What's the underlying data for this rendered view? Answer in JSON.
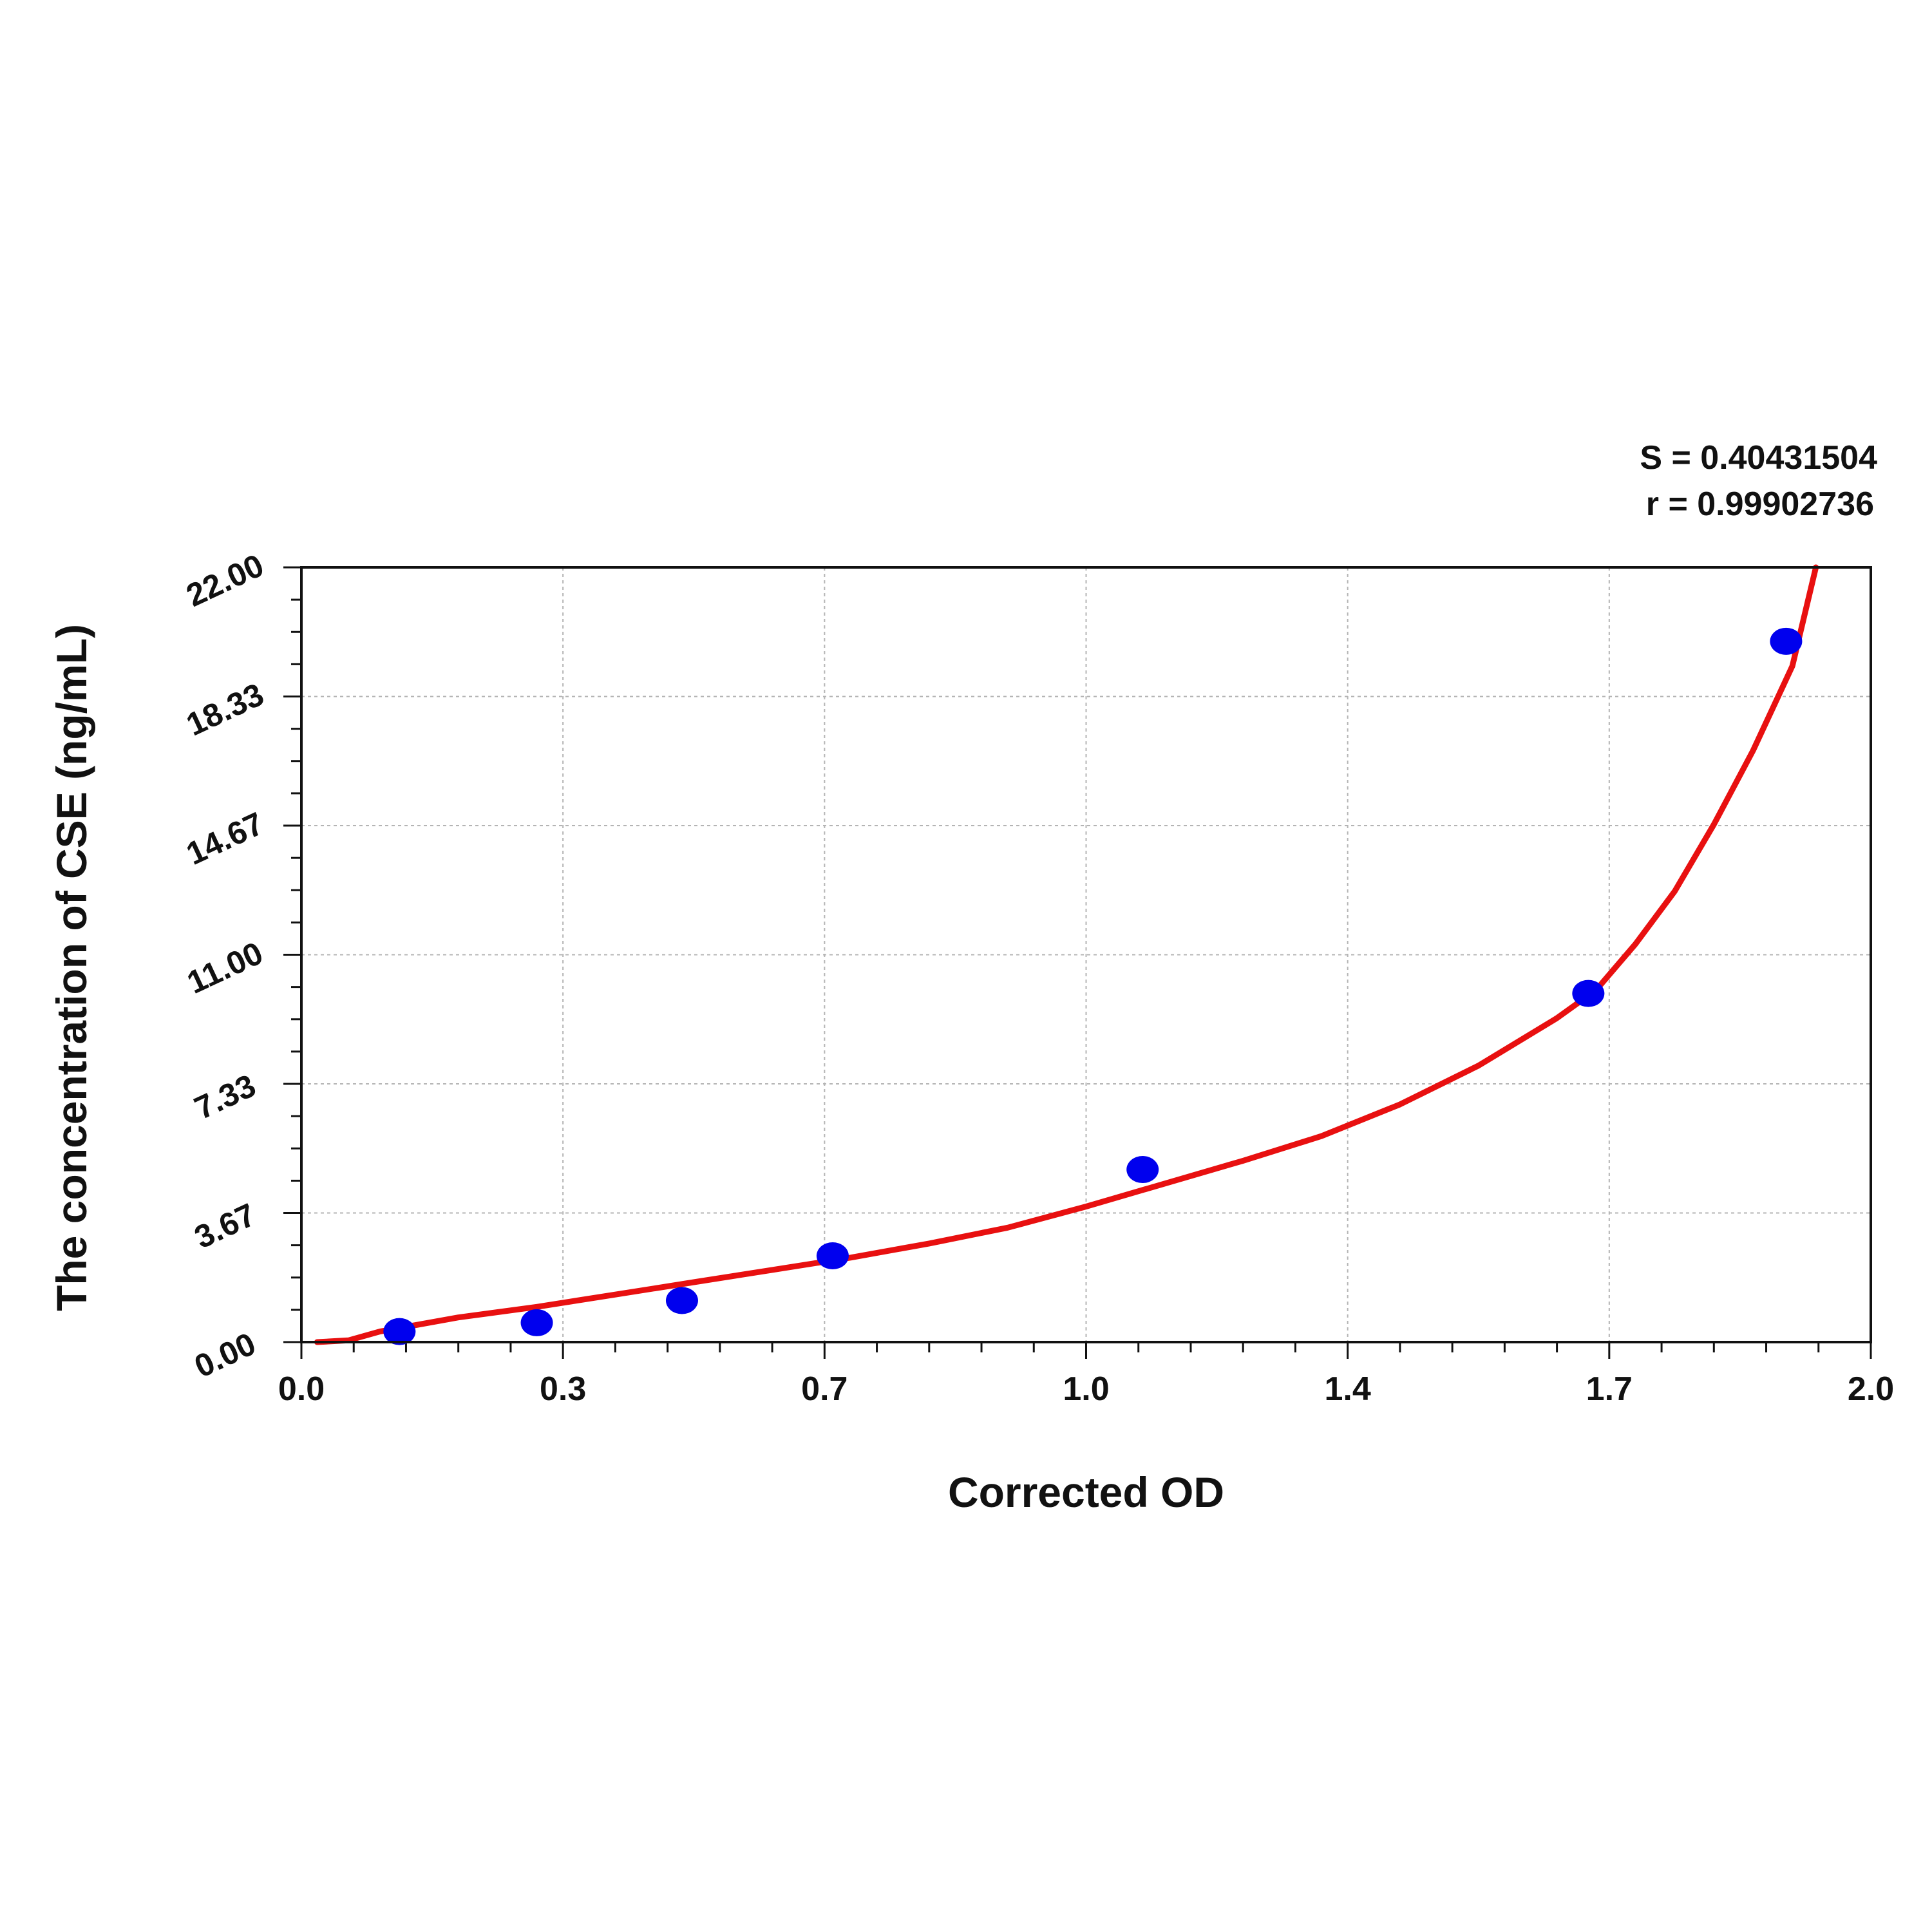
{
  "chart_data": {
    "type": "scatter",
    "title": "",
    "xlabel": "Corrected OD",
    "ylabel": "The concentration of CSE (ng/mL)",
    "xlim": [
      0,
      2.0
    ],
    "ylim": [
      0,
      22
    ],
    "x_ticks": [
      "0.0",
      "0.3",
      "0.7",
      "1.0",
      "1.4",
      "1.7",
      "2.0"
    ],
    "y_ticks": [
      "0.00",
      "3.67",
      "7.33",
      "11.00",
      "14.67",
      "18.33",
      "22.00"
    ],
    "grid": true,
    "stats": [
      "S = 0.40431504",
      "r = 0.99902736"
    ],
    "points": {
      "x": [
        0.125,
        0.3,
        0.485,
        0.677,
        1.072,
        1.64,
        1.892
      ],
      "y": [
        0.3,
        0.55,
        1.18,
        2.45,
        4.9,
        9.9,
        19.9
      ]
    },
    "fit_curve": {
      "x": [
        0.02,
        0.06,
        0.1,
        0.2,
        0.3,
        0.4,
        0.5,
        0.6,
        0.7,
        0.8,
        0.9,
        1.0,
        1.1,
        1.2,
        1.3,
        1.4,
        1.5,
        1.6,
        1.65,
        1.7,
        1.75,
        1.8,
        1.85,
        1.9,
        1.93
      ],
      "y": [
        0.0,
        0.05,
        0.3,
        0.7,
        1.0,
        1.35,
        1.7,
        2.05,
        2.4,
        2.8,
        3.25,
        3.85,
        4.5,
        5.15,
        5.85,
        6.75,
        7.85,
        9.2,
        10.0,
        11.3,
        12.8,
        14.7,
        16.8,
        19.2,
        22.0
      ]
    },
    "colors": {
      "points": "#0000ee",
      "fit": "#e81010",
      "grid": "#b4b4b4"
    }
  }
}
